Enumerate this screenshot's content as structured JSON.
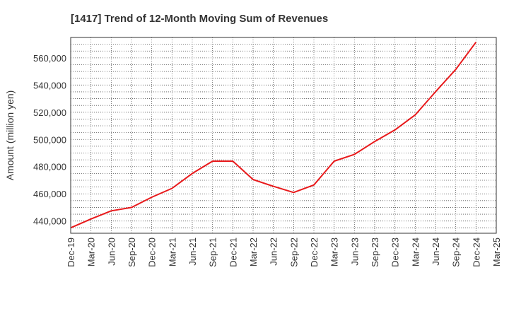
{
  "chart_data": {
    "type": "line",
    "title": "[1417]  Trend of 12-Month Moving Sum of Revenues",
    "xlabel": "",
    "ylabel": "Amount (million yen)",
    "ylim": [
      431000,
      575000
    ],
    "yticks": [
      440000,
      460000,
      480000,
      500000,
      520000,
      540000,
      560000
    ],
    "ytick_labels": [
      "440,000",
      "460,000",
      "480,000",
      "500,000",
      "520,000",
      "540,000",
      "560,000"
    ],
    "x_labels": [
      "Dec-19",
      "Mar-20",
      "Jun-20",
      "Sep-20",
      "Dec-20",
      "Mar-21",
      "Jun-21",
      "Sep-21",
      "Dec-21",
      "Mar-22",
      "Jun-22",
      "Sep-22",
      "Dec-22",
      "Mar-23",
      "Jun-23",
      "Sep-23",
      "Dec-23",
      "Mar-24",
      "Jun-24",
      "Sep-24",
      "Dec-24",
      "Mar-25"
    ],
    "grid": true,
    "series": [
      {
        "color": "#e8191b",
        "x": [
          "Dec-19",
          "Mar-20",
          "Jun-20",
          "Sep-20",
          "Dec-20",
          "Mar-21",
          "Jun-21",
          "Sep-21",
          "Dec-21",
          "Mar-22",
          "Jun-22",
          "Sep-22",
          "Dec-22",
          "Mar-23",
          "Jun-23",
          "Sep-23",
          "Dec-23",
          "Mar-24",
          "Jun-24",
          "Sep-24",
          "Dec-24"
        ],
        "values": [
          435000,
          441500,
          447500,
          450000,
          457500,
          464000,
          475000,
          484000,
          484000,
          470500,
          465500,
          461000,
          466500,
          484000,
          489000,
          498500,
          507000,
          518000,
          535000,
          551500,
          571500
        ]
      }
    ]
  }
}
